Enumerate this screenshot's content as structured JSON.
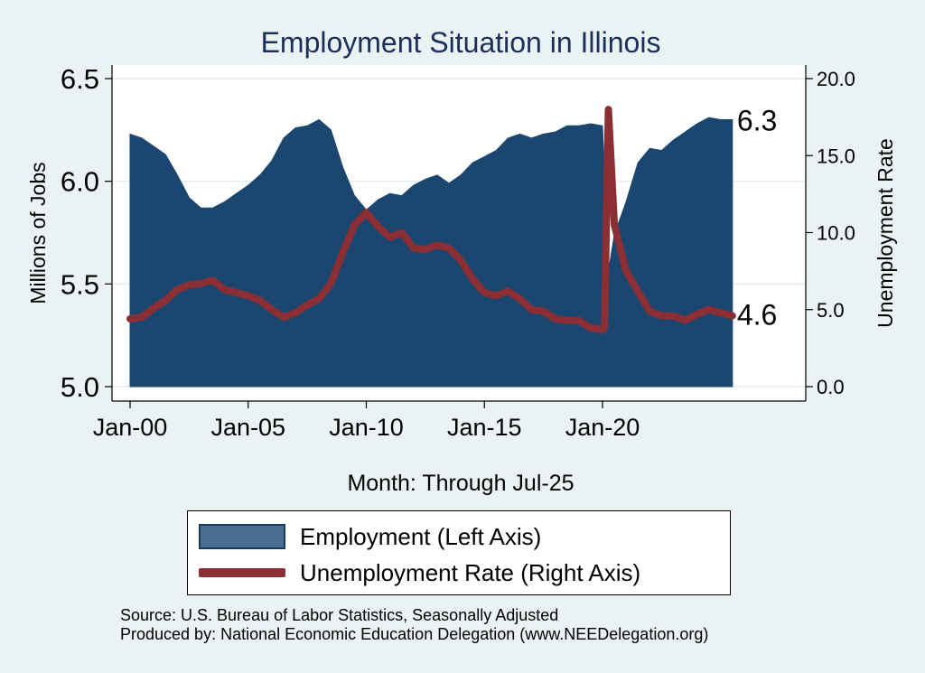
{
  "chart_data": {
    "type": "area+line",
    "title": "Employment Situation in Illinois",
    "xlabel": "Month: Through Jul-25",
    "ylabel_left": "Millions of Jobs",
    "ylabel_right": "Unemployment Rate",
    "x_ticks": [
      "Jan-00",
      "Jan-05",
      "Jan-10",
      "Jan-15",
      "Jan-20"
    ],
    "y_left_ticks": [
      "5.0",
      "5.5",
      "6.0",
      "6.5"
    ],
    "y_right_ticks": [
      "0.0",
      "5.0",
      "10.0",
      "15.0",
      "20.0"
    ],
    "ylim_left": [
      5.0,
      6.5
    ],
    "ylim_right": [
      0,
      20
    ],
    "x_range": [
      2000.0,
      2025.5
    ],
    "grid": true,
    "legend_position": "bottom",
    "colors": {
      "background": "#eaf2f3",
      "plot_bg": "#ffffff",
      "employment": "#1a4670",
      "unemployment": "#8c2f35",
      "title": "#1a2f5a"
    },
    "series": [
      {
        "name": "Employment (Left Axis)",
        "axis": "left",
        "kind": "area",
        "end_label": "6.3",
        "points": [
          [
            "Jan-00",
            6.23
          ],
          [
            "Jul-00",
            6.21
          ],
          [
            "Jan-01",
            6.17
          ],
          [
            "Jul-01",
            6.13
          ],
          [
            "Jan-02",
            6.03
          ],
          [
            "Jul-02",
            5.92
          ],
          [
            "Jan-03",
            5.87
          ],
          [
            "Jul-03",
            5.87
          ],
          [
            "Jan-04",
            5.9
          ],
          [
            "Jul-04",
            5.94
          ],
          [
            "Jan-05",
            5.98
          ],
          [
            "Jul-05",
            6.03
          ],
          [
            "Jan-06",
            6.1
          ],
          [
            "Jul-06",
            6.21
          ],
          [
            "Jan-07",
            6.26
          ],
          [
            "Jul-07",
            6.27
          ],
          [
            "Jan-08",
            6.3
          ],
          [
            "Jul-08",
            6.25
          ],
          [
            "Jan-09",
            6.07
          ],
          [
            "Jul-09",
            5.93
          ],
          [
            "Jan-10",
            5.86
          ],
          [
            "Jul-10",
            5.91
          ],
          [
            "Jan-11",
            5.94
          ],
          [
            "Jul-11",
            5.93
          ],
          [
            "Jan-12",
            5.98
          ],
          [
            "Jul-12",
            6.01
          ],
          [
            "Jan-13",
            6.03
          ],
          [
            "Jul-13",
            5.99
          ],
          [
            "Jan-14",
            6.03
          ],
          [
            "Jul-14",
            6.09
          ],
          [
            "Jan-15",
            6.12
          ],
          [
            "Jul-15",
            6.15
          ],
          [
            "Jan-16",
            6.21
          ],
          [
            "Jul-16",
            6.23
          ],
          [
            "Jan-17",
            6.21
          ],
          [
            "Jul-17",
            6.23
          ],
          [
            "Jan-18",
            6.24
          ],
          [
            "Jul-18",
            6.27
          ],
          [
            "Jan-19",
            6.27
          ],
          [
            "Jul-19",
            6.28
          ],
          [
            "Jan-20",
            6.27
          ],
          [
            "Apr-20",
            5.56
          ],
          [
            "Jul-20",
            5.74
          ],
          [
            "Jan-21",
            5.9
          ],
          [
            "Jul-21",
            6.09
          ],
          [
            "Jan-22",
            6.16
          ],
          [
            "Jul-22",
            6.15
          ],
          [
            "Jan-23",
            6.2
          ],
          [
            "Jul-23",
            6.24
          ],
          [
            "Jan-24",
            6.28
          ],
          [
            "Jul-24",
            6.31
          ],
          [
            "Jan-25",
            6.3
          ],
          [
            "Jul-25",
            6.3
          ]
        ]
      },
      {
        "name": "Unemployment Rate (Right Axis)",
        "axis": "right",
        "kind": "line",
        "end_label": "4.6",
        "points": [
          [
            "Jan-00",
            4.4
          ],
          [
            "Jul-00",
            4.5
          ],
          [
            "Jan-01",
            5.1
          ],
          [
            "Jul-01",
            5.6
          ],
          [
            "Jan-02",
            6.3
          ],
          [
            "Jul-02",
            6.6
          ],
          [
            "Jan-03",
            6.7
          ],
          [
            "Jul-03",
            6.9
          ],
          [
            "Jan-04",
            6.3
          ],
          [
            "Jul-04",
            6.1
          ],
          [
            "Jan-05",
            5.9
          ],
          [
            "Jul-05",
            5.6
          ],
          [
            "Jan-06",
            5.0
          ],
          [
            "Jul-06",
            4.5
          ],
          [
            "Jan-07",
            4.8
          ],
          [
            "Jul-07",
            5.3
          ],
          [
            "Jan-08",
            5.7
          ],
          [
            "Jul-08",
            6.7
          ],
          [
            "Jan-09",
            8.7
          ],
          [
            "Jul-09",
            10.5
          ],
          [
            "Jan-10",
            11.3
          ],
          [
            "Jul-10",
            10.4
          ],
          [
            "Jan-11",
            9.7
          ],
          [
            "Jul-11",
            10.0
          ],
          [
            "Jan-12",
            9.0
          ],
          [
            "Jul-12",
            8.9
          ],
          [
            "Jan-13",
            9.2
          ],
          [
            "Jul-13",
            9.0
          ],
          [
            "Jan-14",
            8.2
          ],
          [
            "Jul-14",
            7.0
          ],
          [
            "Jan-15",
            6.1
          ],
          [
            "Jul-15",
            5.9
          ],
          [
            "Jan-16",
            6.2
          ],
          [
            "Jul-16",
            5.7
          ],
          [
            "Jan-17",
            5.0
          ],
          [
            "Jul-17",
            4.9
          ],
          [
            "Jan-18",
            4.4
          ],
          [
            "Jul-18",
            4.3
          ],
          [
            "Jan-19",
            4.3
          ],
          [
            "Jul-19",
            3.8
          ],
          [
            "Jan-20",
            3.7
          ],
          [
            "Feb-20",
            3.8
          ],
          [
            "Apr-20",
            18.0
          ],
          [
            "Jul-20",
            10.5
          ],
          [
            "Jan-21",
            7.5
          ],
          [
            "Jul-21",
            6.2
          ],
          [
            "Jan-22",
            4.9
          ],
          [
            "Jul-22",
            4.6
          ],
          [
            "Jan-23",
            4.6
          ],
          [
            "Jul-23",
            4.3
          ],
          [
            "Jan-24",
            4.7
          ],
          [
            "Jul-24",
            5.0
          ],
          [
            "Jan-25",
            4.8
          ],
          [
            "Jul-25",
            4.6
          ]
        ]
      }
    ]
  },
  "source_line": "Source: U.S. Bureau of Labor Statistics, Seasonally Adjusted",
  "produced_line": "Produced by: National Economic Education Delegation (www.NEEDelegation.org)"
}
